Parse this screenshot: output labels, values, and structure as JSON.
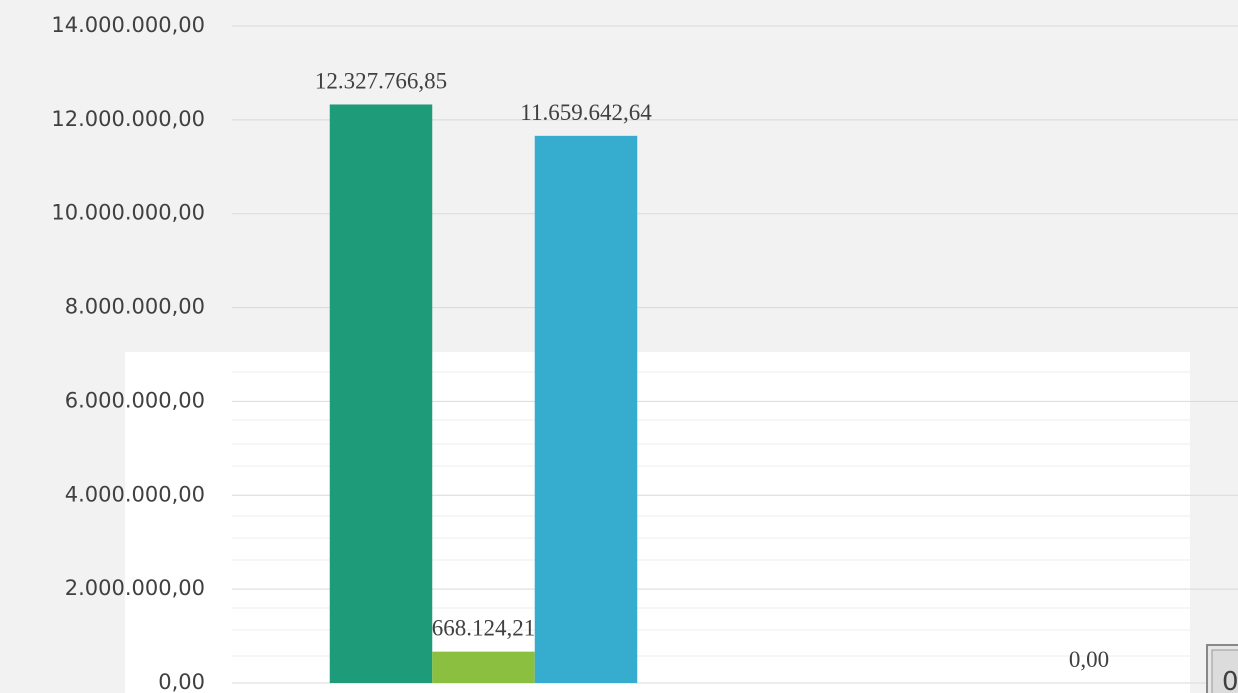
{
  "chart_data": {
    "type": "bar",
    "categories": [
      null,
      null
    ],
    "series": [
      {
        "color": "#1e9b78",
        "values": [
          12327766.85,
          null
        ],
        "value_labels": [
          "12.327.766,85",
          null
        ]
      },
      {
        "color": "#8bbf3f",
        "values": [
          668124.21,
          null
        ],
        "value_labels": [
          "668.124,21",
          null
        ]
      },
      {
        "color": "#36adcf",
        "values": [
          11659642.64,
          0
        ],
        "value_labels": [
          "11.659.642,64",
          "0,00"
        ]
      }
    ],
    "ylim": [
      0,
      14000000
    ],
    "yticks": [
      {
        "value": 0,
        "label": "0,00"
      },
      {
        "value": 2000000,
        "label": "2.000.000,00"
      },
      {
        "value": 4000000,
        "label": "4.000.000,00"
      },
      {
        "value": 6000000,
        "label": "6.000.000,00"
      },
      {
        "value": 8000000,
        "label": "8.000.000,00"
      },
      {
        "value": 10000000,
        "label": "10.000.000,00"
      },
      {
        "value": 12000000,
        "label": "12.000.000,00"
      },
      {
        "value": 14000000,
        "label": "14.000.000,00"
      }
    ],
    "grid": true,
    "overlay_label": "0"
  }
}
